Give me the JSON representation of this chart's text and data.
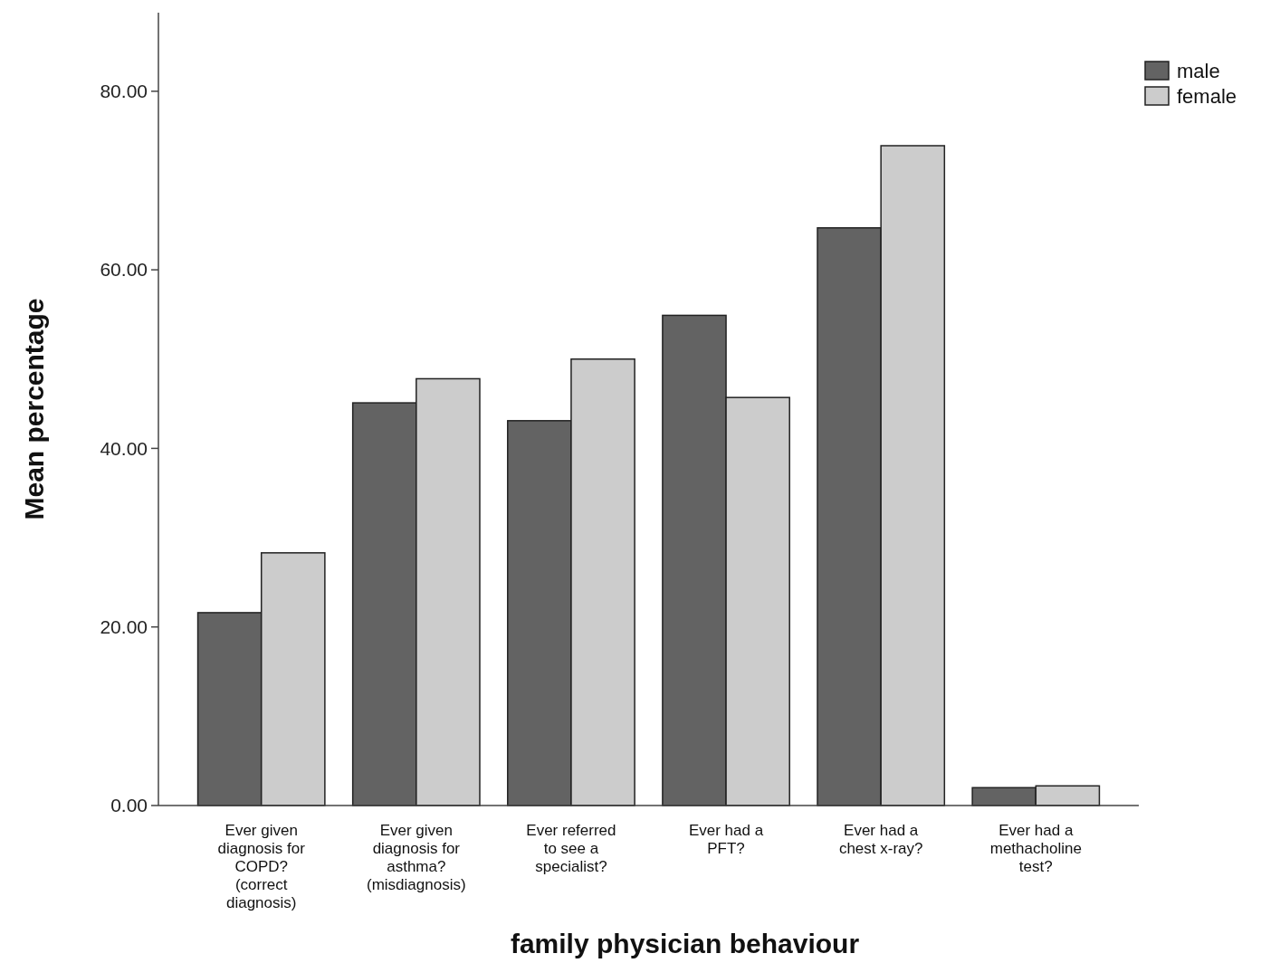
{
  "chart_data": {
    "type": "bar",
    "xlabel": "family physician behaviour",
    "ylabel": "Mean percentage",
    "categories": [
      "Ever given\ndiagnosis for\nCOPD?\n(correct\ndiagnosis)",
      "Ever given\ndiagnosis for\nasthma?\n(misdiagnosis)",
      "Ever referred\nto see a\nspecialist?",
      "Ever had a\nPFT?",
      "Ever had a\nchest x-ray?",
      "Ever had a\nmethacholine\ntest?"
    ],
    "series": [
      {
        "name": "male",
        "color": "#636363",
        "values": [
          21.6,
          45.1,
          43.1,
          54.9,
          64.7,
          2.0
        ]
      },
      {
        "name": "female",
        "color": "#cccccc",
        "values": [
          28.3,
          47.8,
          50.0,
          45.7,
          73.9,
          2.2
        ]
      }
    ],
    "ylim": [
      0,
      88.8
    ],
    "yticks": [
      {
        "value": 0,
        "label": "0.00"
      },
      {
        "value": 20,
        "label": "20.00"
      },
      {
        "value": 40,
        "label": "40.00"
      },
      {
        "value": 60,
        "label": "60.00"
      },
      {
        "value": 80,
        "label": "80.00"
      }
    ],
    "grid": false,
    "legend": "top right"
  }
}
